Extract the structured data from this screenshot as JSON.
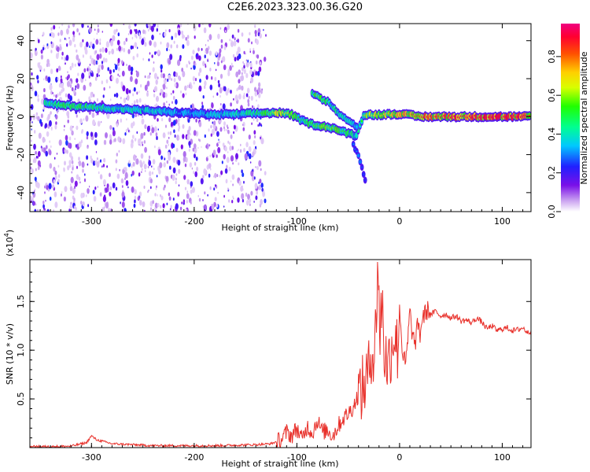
{
  "figure_title": "C2E6.2023.323.00.36.G20",
  "chart_data": [
    {
      "type": "heatmap",
      "description_of_content": "spectrogram of frequency vs height along straight line",
      "xlabel": "Height of straight line (km)",
      "ylabel": "Frequency (Hz)",
      "xlim": [
        -360,
        128
      ],
      "ylim": [
        -50,
        49
      ],
      "x_ticks": [
        -300,
        -200,
        -100,
        0,
        100
      ],
      "x_tick_labels": [
        "-300",
        "-200",
        "-100",
        "0",
        "100"
      ],
      "y_ticks": [
        -40,
        -20,
        0,
        20,
        40
      ],
      "y_tick_labels": [
        "-40",
        "-20",
        "0",
        "20",
        "40"
      ],
      "colorbar": {
        "label": "Normalized spectral amplitude",
        "range": [
          0,
          0.97
        ],
        "ticks": [
          0.0,
          0.2,
          0.4,
          0.6,
          0.8
        ],
        "tick_labels": [
          "0.0",
          "0.2",
          "0.4",
          "0.6",
          "0.8"
        ],
        "colormap": "rainbow (white-purple-blue-cyan-green-yellow-orange-red-magenta)"
      },
      "ridge": {
        "name": "main spectral ridge",
        "x": [
          -345,
          -330,
          -300,
          -270,
          -240,
          -210,
          -180,
          -150,
          -130,
          -115,
          -105,
          -95,
          -85,
          -75,
          -65,
          -55,
          -48,
          -42,
          -35,
          -20,
          0,
          20,
          60,
          100,
          128
        ],
        "y": [
          7,
          6,
          5,
          4,
          3,
          2,
          1,
          1.5,
          2,
          2,
          1,
          -2,
          -4,
          -5,
          -6,
          -8,
          -9,
          -10,
          1,
          1,
          1.5,
          0,
          0,
          0,
          0
        ],
        "amplitude": [
          0.45,
          0.55,
          0.5,
          0.45,
          0.4,
          0.35,
          0.4,
          0.45,
          0.55,
          0.7,
          0.6,
          0.5,
          0.55,
          0.6,
          0.6,
          0.55,
          0.5,
          0.4,
          0.6,
          0.7,
          0.75,
          0.85,
          0.9,
          0.9,
          0.9
        ]
      },
      "secondary_branch": {
        "x": [
          -85,
          -80,
          -75,
          -70,
          -65,
          -60,
          -55,
          -50,
          -45,
          -40
        ],
        "y": [
          12,
          11,
          9,
          8,
          5,
          2,
          0,
          -2,
          -4,
          -6
        ],
        "amplitude": [
          0.5,
          0.6,
          0.55,
          0.5,
          0.5,
          0.45,
          0.45,
          0.4,
          0.4,
          0.35
        ]
      },
      "descending_tail": {
        "x": [
          -45,
          -40,
          -35,
          -32
        ],
        "y": [
          -15,
          -20,
          -30,
          -36
        ],
        "amplitude": [
          0.3,
          0.3,
          0.25,
          0.25
        ]
      },
      "noise_region_x": [
        -360,
        -130
      ]
    },
    {
      "type": "line",
      "series": [
        {
          "color": "#e8302a",
          "x": [
            -360,
            -340,
            -320,
            -305,
            -300,
            -295,
            -280,
            -260,
            -240,
            -220,
            -200,
            -180,
            -160,
            -140,
            -125,
            -115,
            -110,
            -105,
            -100,
            -95,
            -90,
            -85,
            -80,
            -75,
            -70,
            -65,
            -60,
            -55,
            -50,
            -45,
            -40,
            -35,
            -30,
            -27,
            -25,
            -23,
            -21,
            -19,
            -17,
            -15,
            -12,
            -10,
            -7,
            -5,
            -2,
            0,
            3,
            6,
            8,
            10,
            12,
            15,
            18,
            20,
            22,
            25,
            28,
            30,
            35,
            40,
            45,
            50,
            55,
            60,
            65,
            70,
            75,
            80,
            85,
            90,
            95,
            100,
            105,
            110,
            115,
            120,
            125,
            128
          ],
          "y": [
            0.01,
            0.01,
            0.015,
            0.05,
            0.12,
            0.08,
            0.04,
            0.03,
            0.02,
            0.02,
            0.02,
            0.02,
            0.025,
            0.03,
            0.04,
            0.08,
            0.16,
            0.12,
            0.2,
            0.08,
            0.22,
            0.15,
            0.28,
            0.16,
            0.18,
            0.12,
            0.22,
            0.3,
            0.35,
            0.42,
            0.55,
            0.62,
            0.78,
            1.05,
            0.9,
            1.25,
            1.95,
            1.1,
            1.6,
            1.0,
            0.85,
            0.92,
            1.08,
            1.18,
            1.0,
            1.45,
            0.95,
            0.85,
            1.1,
            1.4,
            1.2,
            1.05,
            1.28,
            1.15,
            1.32,
            1.38,
            1.42,
            1.36,
            1.4,
            1.35,
            1.37,
            1.33,
            1.35,
            1.3,
            1.31,
            1.28,
            1.33,
            1.29,
            1.22,
            1.25,
            1.2,
            1.22,
            1.23,
            1.2,
            1.21,
            1.23,
            1.18,
            1.2
          ]
        }
      ],
      "xlabel": "Height of straight line (km)",
      "ylabel": "SNR (10 * v/v)",
      "y_multiplier_label": "(x10",
      "y_multiplier_exp": "4",
      "y_multiplier_close": ")",
      "xlim": [
        -360,
        128
      ],
      "ylim": [
        0,
        1.93
      ],
      "x_ticks": [
        -300,
        -200,
        -100,
        0,
        100
      ],
      "x_tick_labels": [
        "-300",
        "-200",
        "-100",
        "0",
        "100"
      ],
      "y_ticks": [
        0.5,
        1.0,
        1.5
      ],
      "y_tick_labels": [
        "0.5",
        "1.0",
        "1.5"
      ]
    }
  ]
}
